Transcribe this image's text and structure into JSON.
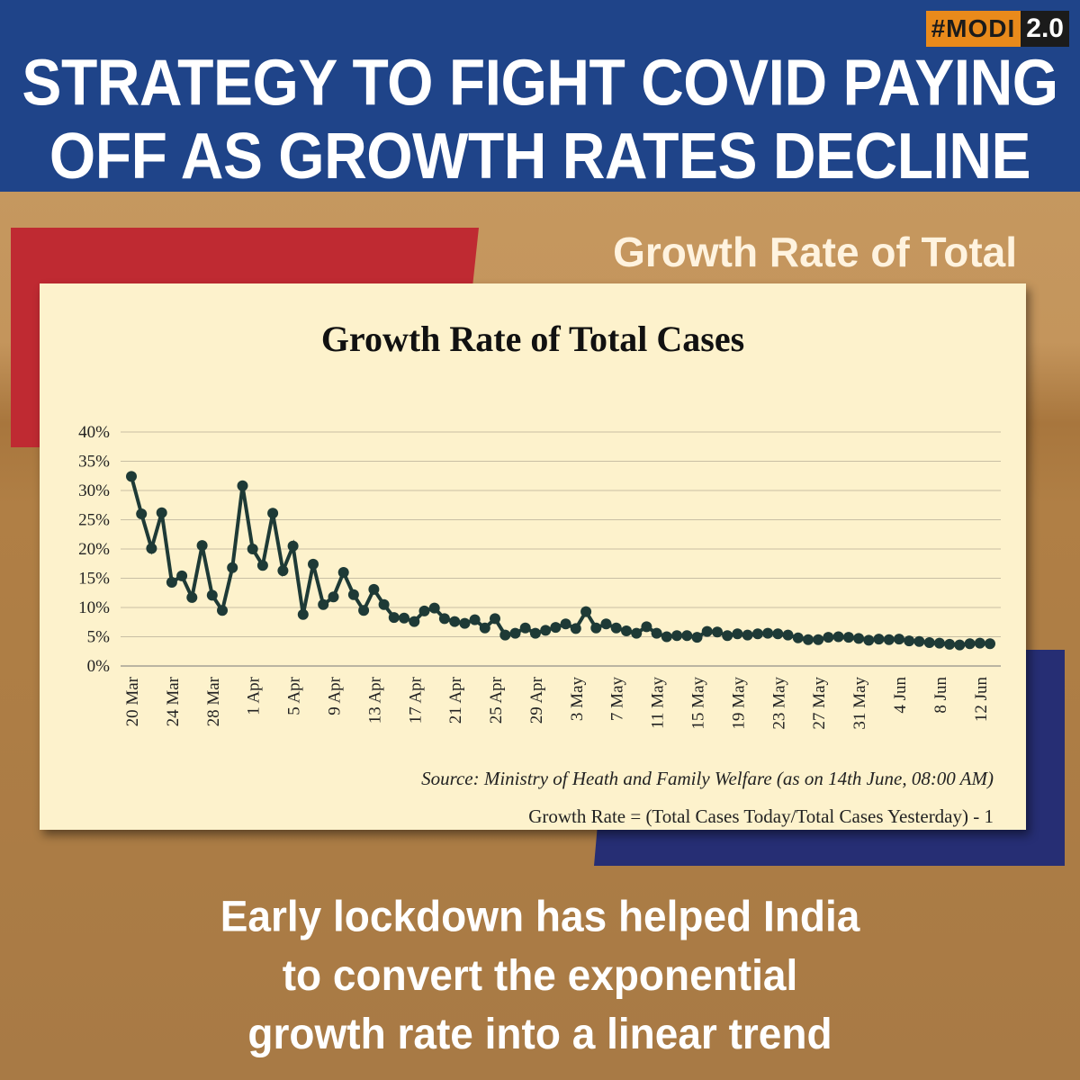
{
  "badge": {
    "hash": "#MODI",
    "version": "2.0"
  },
  "headline": {
    "line1": "STRATEGY TO FIGHT COVID PAYING",
    "line2": "OFF AS GROWTH RATES DECLINE"
  },
  "subtitle": "Growth Rate of Total Cases",
  "bottom": {
    "line1": "Early lockdown has helped India",
    "line2": "to convert the exponential",
    "line3": "growth rate into a linear trend"
  },
  "colors": {
    "navy": "#1f4489",
    "red": "#bf2a32",
    "orange": "#e98a1b",
    "line": "#1e3a36",
    "card": "#fdf2cc"
  },
  "chart_data": {
    "type": "line",
    "title": "Growth Rate of Total Cases",
    "source": "Source: Ministry of Heath and Family Welfare (as on 14th June, 08:00 AM)",
    "formula": "Growth Rate = (Total Cases Today/Total Cases Yesterday) - 1",
    "ylim": [
      0,
      40
    ],
    "yticks": [
      0,
      5,
      10,
      15,
      20,
      25,
      30,
      35,
      40
    ],
    "ytick_labels": [
      "0%",
      "5%",
      "10%",
      "15%",
      "20%",
      "25%",
      "30%",
      "35%",
      "40%"
    ],
    "xtick_labels": [
      "20 Mar",
      "24 Mar",
      "28 Mar",
      "1 Apr",
      "5 Apr",
      "9 Apr",
      "13 Apr",
      "17 Apr",
      "21 Apr",
      "25 Apr",
      "29 Apr",
      "3 May",
      "7 May",
      "11 May",
      "15 May",
      "19 May",
      "23 May",
      "27 May",
      "31 May",
      "4 Jun",
      "8 Jun",
      "12 Jun"
    ],
    "grid": true,
    "x_start": "20 Mar",
    "x_end": "13 Jun",
    "series": [
      {
        "name": "",
        "values": [
          32.4,
          26.0,
          20.1,
          26.2,
          14.3,
          15.4,
          11.7,
          20.6,
          12.1,
          9.5,
          16.8,
          30.8,
          20.0,
          17.2,
          26.1,
          16.3,
          20.5,
          8.8,
          17.4,
          10.5,
          11.8,
          16.0,
          12.2,
          9.5,
          13.1,
          10.5,
          8.3,
          8.2,
          7.6,
          9.4,
          9.9,
          8.1,
          7.6,
          7.3,
          7.9,
          6.5,
          8.1,
          5.3,
          5.6,
          6.5,
          5.6,
          6.1,
          6.6,
          7.2,
          6.4,
          9.3,
          6.5,
          7.2,
          6.5,
          6.0,
          5.6,
          6.7,
          5.6,
          5.0,
          5.2,
          5.2,
          4.9,
          5.9,
          5.8,
          5.2,
          5.5,
          5.3,
          5.5,
          5.6,
          5.5,
          5.3,
          4.8,
          4.5,
          4.5,
          4.9,
          5.0,
          4.9,
          4.7,
          4.4,
          4.6,
          4.5,
          4.6,
          4.3,
          4.2,
          4.0,
          3.9,
          3.7,
          3.6,
          3.8,
          3.9,
          3.8
        ]
      }
    ]
  }
}
